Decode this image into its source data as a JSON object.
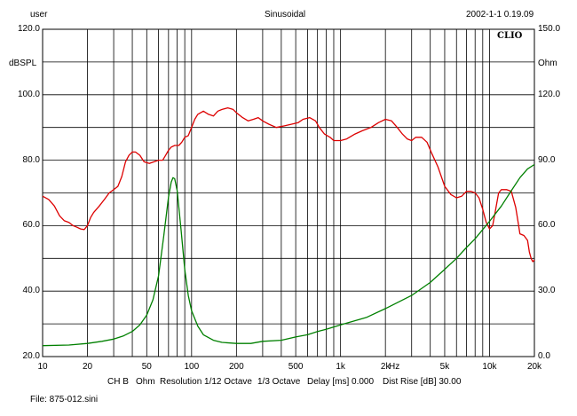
{
  "header": {
    "user": "user",
    "mode": "Sinusoidal",
    "datetime": "2002-1-1 0.19.09"
  },
  "logo": "CLIO",
  "footer": {
    "channel": "CH B",
    "unit": "Ohm",
    "resolution": "Resolution 1/12 Octave",
    "smoothing": "1/3 Octave",
    "delay": "Delay [ms] 0.000",
    "dist_rise": "Dist Rise [dB] 30.00",
    "file": "File: 875-012.sini"
  },
  "chart_data": {
    "type": "line",
    "x_scale": "log",
    "xlim": [
      10,
      20000
    ],
    "x_unit": "Hz",
    "x_ticks": [
      {
        "v": 10,
        "label": "10"
      },
      {
        "v": 20,
        "label": "20"
      },
      {
        "v": 50,
        "label": "50"
      },
      {
        "v": 100,
        "label": "100"
      },
      {
        "v": 200,
        "label": "200"
      },
      {
        "v": 500,
        "label": "500"
      },
      {
        "v": 1000,
        "label": "1k"
      },
      {
        "v": 2000,
        "label": "2k"
      },
      {
        "v": 5000,
        "label": "5k"
      },
      {
        "v": 10000,
        "label": "10k"
      },
      {
        "v": 20000,
        "label": "20k"
      }
    ],
    "y_left": {
      "label": "dBSPL",
      "range": [
        20,
        120
      ],
      "ticks": [
        "120.0",
        "100.0",
        "80.0",
        "60.0",
        "40.0",
        "20.0"
      ]
    },
    "y_right": {
      "label": "Ohm",
      "range": [
        0,
        150
      ],
      "ticks": [
        "150.0",
        "120.0",
        "90.0",
        "60.0",
        "30.0",
        "0.0"
      ]
    },
    "grid": true,
    "series": [
      {
        "axis": "left",
        "color": "#dd0000",
        "points": [
          [
            10,
            69
          ],
          [
            11,
            68
          ],
          [
            12,
            66
          ],
          [
            13,
            63
          ],
          [
            14,
            61.5
          ],
          [
            15,
            61
          ],
          [
            16,
            60
          ],
          [
            17,
            59.5
          ],
          [
            18,
            59
          ],
          [
            19,
            58.8
          ],
          [
            20,
            60
          ],
          [
            21,
            62.5
          ],
          [
            22,
            64
          ],
          [
            24,
            66
          ],
          [
            26,
            68
          ],
          [
            28,
            70
          ],
          [
            30,
            71
          ],
          [
            32,
            72
          ],
          [
            34,
            75
          ],
          [
            36,
            79.5
          ],
          [
            38,
            81.5
          ],
          [
            40,
            82.5
          ],
          [
            42,
            82.5
          ],
          [
            45,
            81.5
          ],
          [
            48,
            79.5
          ],
          [
            52,
            79
          ],
          [
            56,
            79.5
          ],
          [
            60,
            80
          ],
          [
            64,
            80
          ],
          [
            67,
            81.5
          ],
          [
            70,
            83
          ],
          [
            73,
            84
          ],
          [
            77,
            84.5
          ],
          [
            82,
            84.5
          ],
          [
            86,
            85.5
          ],
          [
            90,
            87
          ],
          [
            95,
            87.5
          ],
          [
            100,
            90
          ],
          [
            105,
            92.5
          ],
          [
            110,
            94
          ],
          [
            120,
            95
          ],
          [
            130,
            94
          ],
          [
            140,
            93.5
          ],
          [
            150,
            95
          ],
          [
            160,
            95.5
          ],
          [
            175,
            96
          ],
          [
            190,
            95.5
          ],
          [
            200,
            94.5
          ],
          [
            220,
            93
          ],
          [
            240,
            92
          ],
          [
            260,
            92.5
          ],
          [
            280,
            93
          ],
          [
            300,
            92
          ],
          [
            330,
            91
          ],
          [
            370,
            90
          ],
          [
            420,
            90.5
          ],
          [
            470,
            91
          ],
          [
            520,
            91.5
          ],
          [
            560,
            92.5
          ],
          [
            620,
            93
          ],
          [
            680,
            92
          ],
          [
            720,
            90
          ],
          [
            780,
            88
          ],
          [
            850,
            87
          ],
          [
            900,
            86
          ],
          [
            1000,
            86
          ],
          [
            1100,
            86.5
          ],
          [
            1250,
            88
          ],
          [
            1400,
            89
          ],
          [
            1600,
            90
          ],
          [
            1800,
            91.5
          ],
          [
            2000,
            92.5
          ],
          [
            2200,
            92
          ],
          [
            2400,
            90
          ],
          [
            2600,
            88
          ],
          [
            2800,
            86.5
          ],
          [
            3000,
            86
          ],
          [
            3200,
            87
          ],
          [
            3500,
            87
          ],
          [
            3800,
            85.5
          ],
          [
            4100,
            82
          ],
          [
            4500,
            78
          ],
          [
            5000,
            72
          ],
          [
            5500,
            69.5
          ],
          [
            6000,
            68.5
          ],
          [
            6500,
            69
          ],
          [
            7000,
            70.5
          ],
          [
            7500,
            70.5
          ],
          [
            8000,
            70
          ],
          [
            8500,
            68.5
          ],
          [
            9000,
            65
          ],
          [
            9500,
            61
          ],
          [
            10000,
            59
          ],
          [
            10500,
            60
          ],
          [
            11000,
            65
          ],
          [
            11500,
            70
          ],
          [
            12000,
            71
          ],
          [
            13000,
            71
          ],
          [
            14000,
            70.5
          ],
          [
            15000,
            65.5
          ],
          [
            15500,
            61.5
          ],
          [
            16000,
            57.5
          ],
          [
            17000,
            57
          ],
          [
            18000,
            55.5
          ],
          [
            18500,
            52
          ],
          [
            19000,
            50
          ],
          [
            19500,
            49
          ],
          [
            20000,
            49.5
          ]
        ]
      },
      {
        "axis": "right",
        "color": "#008000",
        "points": [
          [
            10,
            5
          ],
          [
            15,
            5.3
          ],
          [
            20,
            6
          ],
          [
            25,
            7
          ],
          [
            30,
            8
          ],
          [
            35,
            9.5
          ],
          [
            40,
            11.5
          ],
          [
            45,
            14.5
          ],
          [
            50,
            19
          ],
          [
            55,
            26
          ],
          [
            60,
            37
          ],
          [
            65,
            55
          ],
          [
            70,
            73
          ],
          [
            73,
            80
          ],
          [
            75,
            82
          ],
          [
            77,
            81.5
          ],
          [
            80,
            76
          ],
          [
            85,
            58
          ],
          [
            90,
            40
          ],
          [
            95,
            28
          ],
          [
            100,
            21
          ],
          [
            110,
            14
          ],
          [
            120,
            10
          ],
          [
            140,
            7.5
          ],
          [
            160,
            6.5
          ],
          [
            200,
            6
          ],
          [
            250,
            6
          ],
          [
            300,
            7
          ],
          [
            400,
            7.5
          ],
          [
            500,
            9
          ],
          [
            600,
            10
          ],
          [
            700,
            11.5
          ],
          [
            800,
            12.5
          ],
          [
            1000,
            14.5
          ],
          [
            1500,
            18
          ],
          [
            2000,
            22
          ],
          [
            3000,
            28
          ],
          [
            4000,
            34
          ],
          [
            5000,
            40
          ],
          [
            6000,
            45
          ],
          [
            7000,
            50
          ],
          [
            8000,
            54
          ],
          [
            10000,
            62
          ],
          [
            12000,
            69
          ],
          [
            14000,
            76
          ],
          [
            16000,
            82
          ],
          [
            18000,
            86
          ],
          [
            20000,
            88
          ]
        ]
      }
    ]
  }
}
